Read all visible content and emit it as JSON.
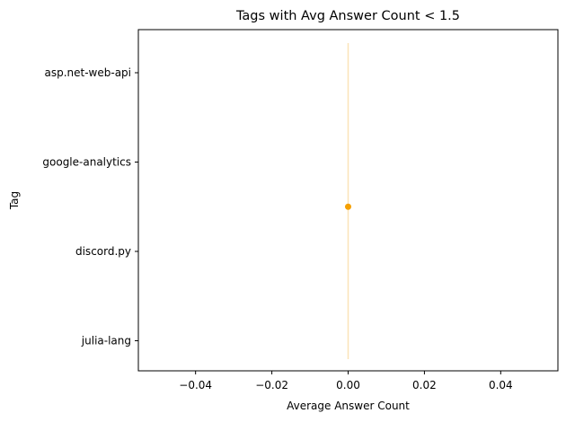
{
  "chart_data": {
    "type": "scatter",
    "title": "Tags with Avg Answer Count < 1.5",
    "xlabel": "Average Answer Count",
    "ylabel": "Tag",
    "categories": [
      "asp.net-web-api",
      "google-analytics",
      "discord.py",
      "julia-lang"
    ],
    "xlim": [
      -0.055,
      0.055
    ],
    "xticks": [
      -0.04,
      -0.02,
      0.0,
      0.02,
      0.04
    ],
    "xtick_labels": [
      "−0.04",
      "−0.02",
      "0.00",
      "0.02",
      "0.04"
    ],
    "grid": false,
    "point": {
      "x": 0.0,
      "y_position": "midpoint between google-analytics and discord.py"
    },
    "errorbar": {
      "x": 0.0,
      "span": "asp.net-web-api to julia-lang"
    },
    "colors": {
      "point": "#f5a000",
      "errorbar": "#fbe3b8",
      "axes": "#000000"
    }
  }
}
